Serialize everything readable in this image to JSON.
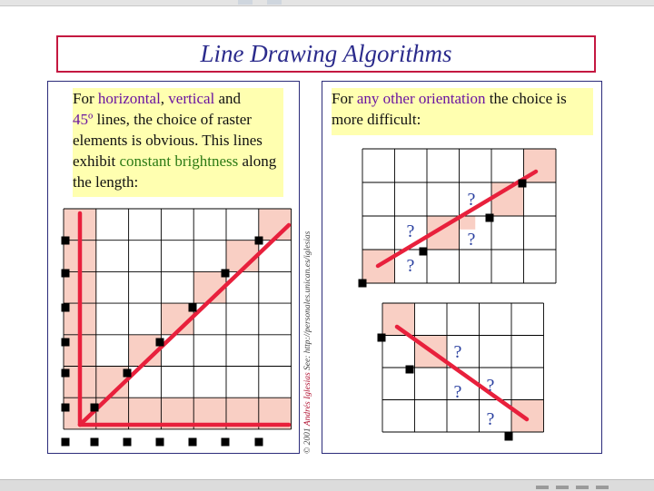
{
  "title": "Line Drawing Algorithms",
  "left_note": {
    "p1": "For ",
    "w_horizontal": "horizontal",
    "p2": ", ",
    "w_vertical": "vertical",
    "p3": " and",
    "w_45": "45º",
    "p4": " lines, the choice of raster elements is obvious. This lines exhibit ",
    "w_constant": "constant brightness",
    "p5": " along the length:"
  },
  "right_note": {
    "p1": "For ",
    "w_other": "any other orientation",
    "p2": " the choice is more difficult:"
  },
  "credit": {
    "copyright": "© 2001",
    "author": "Andrés Iglesias",
    "see": "See: http://personales.unican.es/iglesias"
  },
  "question_mark": "?",
  "colors": {
    "title_border": "#c41840",
    "title_text": "#2b2b8c",
    "highlight": "#ffffb0",
    "keyword": "#6a14a0",
    "keyword_green": "#2c7a14",
    "pixel_fill": "#f9cfc4",
    "line": "#e8203c",
    "question": "#2a40a0"
  }
}
